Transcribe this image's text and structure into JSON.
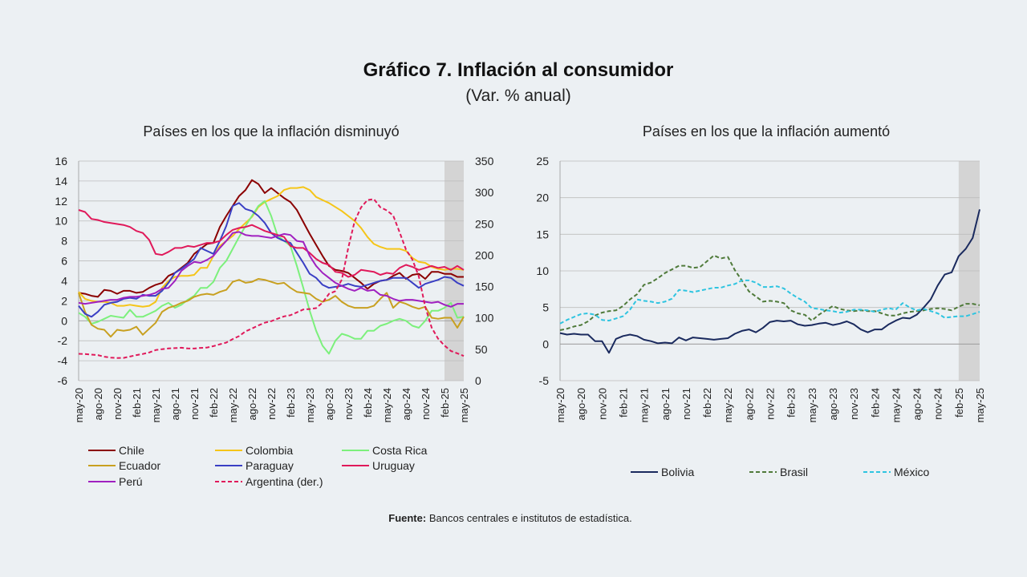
{
  "header": {
    "title": "Gráfico 7. Inflación al consumidor",
    "subtitle": "(Var. % anual)"
  },
  "panels": {
    "left_title": "Países en los que la inflación disminuyó",
    "right_title": "Países en los que la inflación aumentó"
  },
  "source": {
    "label": "Fuente:",
    "text": "Bancos centrales e institutos de estadística."
  },
  "colors": {
    "Chile": "#8b0000",
    "Colombia": "#f5c518",
    "Costa Rica": "#7cf07c",
    "Ecuador": "#c8a020",
    "Paraguay": "#3a3fc4",
    "Uruguay": "#e0195a",
    "Perú": "#a020c0",
    "Argentina (der.)": "#e0195a",
    "Bolivia": "#1a2a5e",
    "Brasil": "#4f7a3a",
    "México": "#2ec4e0",
    "shade": "#d4d4d4",
    "grid": "#bdbdbd"
  },
  "chart_data": [
    {
      "type": "line",
      "title": "Países en los que la inflación disminuyó",
      "x_ticks": [
        "may-20",
        "ago-20",
        "nov-20",
        "feb-21",
        "may-21",
        "ago-21",
        "nov-21",
        "feb-22",
        "may-22",
        "ago-22",
        "nov-22",
        "feb-23",
        "may-23",
        "ago-23",
        "nov-23",
        "feb-24",
        "may-24",
        "ago-24",
        "nov-24",
        "feb-25",
        "may-25"
      ],
      "x_start": "may-20",
      "x_end": "may-25",
      "ylim": [
        -6,
        16
      ],
      "y_ticks": [
        -6,
        -4,
        -2,
        0,
        2,
        4,
        6,
        8,
        10,
        12,
        14,
        16
      ],
      "y2lim": [
        0,
        350
      ],
      "y2_ticks": [
        0,
        50,
        100,
        150,
        200,
        250,
        300,
        350
      ],
      "shaded_from": "feb-25",
      "grid": true,
      "legend_position": "bottom",
      "series": [
        {
          "name": "Chile",
          "axis": "left",
          "style": "solid",
          "values": [
            2.8,
            2.7,
            2.5,
            2.4,
            3.1,
            3.0,
            2.7,
            3.0,
            3.0,
            2.8,
            2.9,
            3.3,
            3.6,
            3.8,
            4.5,
            4.8,
            5.3,
            5.8,
            6.7,
            7.2,
            7.7,
            7.8,
            9.4,
            10.5,
            11.5,
            12.5,
            13.1,
            14.1,
            13.7,
            12.8,
            13.3,
            12.8,
            12.3,
            11.9,
            11.1,
            9.9,
            8.7,
            7.6,
            6.5,
            5.5,
            5.1,
            5.0,
            4.8,
            4.3,
            3.8,
            3.2,
            3.7,
            4.0,
            4.1,
            4.5,
            4.8,
            4.2,
            4.6,
            4.7,
            4.2,
            4.9,
            4.9,
            4.7,
            4.7,
            4.4,
            4.4
          ]
        },
        {
          "name": "Colombia",
          "axis": "left",
          "style": "solid",
          "values": [
            2.9,
            2.2,
            2.0,
            1.9,
            1.9,
            1.8,
            1.5,
            1.5,
            1.6,
            1.5,
            1.4,
            1.5,
            1.9,
            3.3,
            4.0,
            4.4,
            4.5,
            4.5,
            4.6,
            5.3,
            5.3,
            6.5,
            7.5,
            8.0,
            8.5,
            9.2,
            9.8,
            10.4,
            11.4,
            11.9,
            12.2,
            12.5,
            13.1,
            13.3,
            13.3,
            13.4,
            13.1,
            12.4,
            12.1,
            11.8,
            11.4,
            11.0,
            10.5,
            10.0,
            9.3,
            8.4,
            7.7,
            7.4,
            7.2,
            7.2,
            7.2,
            7.0,
            6.3,
            5.9,
            5.8,
            5.4,
            5.2,
            5.1,
            5.2,
            5.2,
            5.1
          ]
        },
        {
          "name": "Costa Rica",
          "axis": "left",
          "style": "solid",
          "values": [
            0.8,
            0.4,
            -0.3,
            -0.1,
            0.2,
            0.5,
            0.4,
            0.3,
            1.1,
            0.4,
            0.4,
            0.7,
            1.0,
            1.5,
            1.8,
            1.3,
            1.6,
            2.1,
            2.5,
            3.3,
            3.3,
            3.9,
            5.3,
            6.0,
            7.2,
            8.4,
            9.5,
            10.5,
            11.5,
            12.0,
            10.5,
            8.5,
            8.0,
            7.5,
            5.5,
            3.3,
            1.0,
            -1.0,
            -2.5,
            -3.3,
            -2.0,
            -1.3,
            -1.5,
            -1.8,
            -1.8,
            -1.0,
            -1.0,
            -0.5,
            -0.3,
            0.0,
            0.2,
            0.0,
            -0.5,
            -0.7,
            0.0,
            1.0,
            1.0,
            1.3,
            1.8,
            0.3,
            0.4
          ]
        },
        {
          "name": "Ecuador",
          "axis": "left",
          "style": "solid",
          "values": [
            2.8,
            0.9,
            -0.4,
            -0.8,
            -0.9,
            -1.6,
            -0.9,
            -1.0,
            -0.9,
            -0.6,
            -1.4,
            -0.8,
            -0.2,
            0.9,
            1.3,
            1.5,
            1.8,
            2.0,
            2.4,
            2.6,
            2.7,
            2.6,
            2.9,
            3.1,
            3.9,
            4.1,
            3.8,
            3.9,
            4.2,
            4.1,
            3.9,
            3.7,
            3.8,
            3.3,
            2.9,
            2.8,
            2.7,
            2.2,
            1.9,
            2.1,
            2.5,
            1.9,
            1.5,
            1.3,
            1.3,
            1.3,
            1.5,
            2.2,
            2.8,
            1.3,
            1.9,
            1.7,
            1.4,
            1.2,
            1.4,
            0.3,
            0.2,
            0.3,
            0.3,
            -0.7,
            0.4
          ]
        },
        {
          "name": "Paraguay",
          "axis": "left",
          "style": "solid",
          "values": [
            1.5,
            0.7,
            0.4,
            0.9,
            1.6,
            1.8,
            1.9,
            2.2,
            2.3,
            2.2,
            2.6,
            2.5,
            2.5,
            3.0,
            3.8,
            4.8,
            5.2,
            5.7,
            6.2,
            7.3,
            7.0,
            6.7,
            8.0,
            9.5,
            11.5,
            11.8,
            11.2,
            11.0,
            10.5,
            9.8,
            8.8,
            8.3,
            8.0,
            7.8,
            6.8,
            5.8,
            4.7,
            4.3,
            3.6,
            3.3,
            3.4,
            3.5,
            3.7,
            3.5,
            3.4,
            3.6,
            3.8,
            4.0,
            4.1,
            4.3,
            4.3,
            4.3,
            3.8,
            3.3,
            3.7,
            3.9,
            4.1,
            4.4,
            4.3,
            3.8,
            3.5
          ]
        },
        {
          "name": "Uruguay",
          "axis": "left",
          "style": "solid",
          "values": [
            11.1,
            10.9,
            10.2,
            10.1,
            9.9,
            9.8,
            9.7,
            9.6,
            9.4,
            9.0,
            8.8,
            8.1,
            6.7,
            6.6,
            6.9,
            7.3,
            7.3,
            7.5,
            7.4,
            7.6,
            7.8,
            7.8,
            8.0,
            8.6,
            9.1,
            9.3,
            9.4,
            9.6,
            9.3,
            9.0,
            8.8,
            8.6,
            8.4,
            7.5,
            7.3,
            7.3,
            6.8,
            6.2,
            5.8,
            5.6,
            4.9,
            4.8,
            4.4,
            4.6,
            5.1,
            5.0,
            4.9,
            4.6,
            4.8,
            4.7,
            5.3,
            5.6,
            5.4,
            5.1,
            5.3,
            5.5,
            5.3,
            5.4,
            5.1,
            5.5,
            5.1
          ]
        },
        {
          "name": "Perú",
          "axis": "left",
          "style": "solid",
          "values": [
            1.8,
            1.7,
            1.8,
            1.9,
            2.0,
            2.1,
            2.1,
            2.3,
            2.4,
            2.4,
            2.5,
            2.6,
            2.8,
            3.2,
            3.3,
            4.0,
            5.0,
            5.5,
            5.9,
            5.8,
            6.1,
            6.5,
            7.3,
            8.0,
            8.8,
            8.9,
            8.6,
            8.5,
            8.5,
            8.4,
            8.3,
            8.5,
            8.7,
            8.6,
            8.0,
            7.9,
            6.5,
            5.5,
            4.8,
            4.3,
            3.8,
            3.5,
            3.2,
            3.0,
            3.3,
            3.0,
            3.1,
            2.6,
            2.5,
            2.2,
            2.0,
            2.1,
            2.1,
            2.0,
            1.9,
            1.8,
            1.9,
            1.6,
            1.4,
            1.7,
            1.7
          ]
        },
        {
          "name": "Argentina (der.)",
          "axis": "right",
          "style": "dashed",
          "values": [
            42.8,
            42.4,
            41.5,
            40.7,
            38.2,
            36.6,
            36.1,
            36.3,
            38.5,
            40.7,
            42.6,
            45.0,
            48.8,
            50.2,
            51.4,
            51.8,
            52.5,
            51.4,
            51.2,
            52.3,
            52.8,
            55.1,
            58.0,
            60.7,
            66.3,
            71.0,
            78.5,
            83.0,
            88.0,
            92.4,
            94.8,
            98.8,
            102.5,
            104.3,
            108.8,
            113.4,
            114.2,
            115.6,
            124.4,
            138.3,
            142.7,
            160.9,
            211.4,
            254.2,
            276.2,
            287.9,
            289.4,
            276.4,
            271.5,
            263.4,
            236.7,
            209.0,
            193.0,
            166.0,
            117.8,
            84.5,
            66.9,
            55.9,
            47.3,
            43.5,
            39.4
          ]
        }
      ]
    },
    {
      "type": "line",
      "title": "Países en los que la inflación aumentó",
      "x_ticks": [
        "may-20",
        "ago-20",
        "nov-20",
        "feb-21",
        "may-21",
        "ago-21",
        "nov-21",
        "feb-22",
        "may-22",
        "ago-22",
        "nov-22",
        "feb-23",
        "may-23",
        "ago-23",
        "nov-23",
        "feb-24",
        "may-24",
        "ago-24",
        "nov-24",
        "feb-25",
        "may-25"
      ],
      "x_start": "may-20",
      "x_end": "may-25",
      "ylim": [
        -5,
        25
      ],
      "y_ticks": [
        -5,
        0,
        5,
        10,
        15,
        20,
        25
      ],
      "shaded_from": "feb-25",
      "grid": true,
      "legend_position": "bottom",
      "series": [
        {
          "name": "Bolivia",
          "style": "solid",
          "values": [
            1.5,
            1.3,
            1.4,
            1.3,
            1.3,
            0.4,
            0.4,
            -1.2,
            0.7,
            1.1,
            1.3,
            1.1,
            0.6,
            0.4,
            0.1,
            0.2,
            0.1,
            0.9,
            0.5,
            0.9,
            0.8,
            0.7,
            0.6,
            0.7,
            0.8,
            1.4,
            1.8,
            2.0,
            1.6,
            2.2,
            3.0,
            3.2,
            3.1,
            3.2,
            2.7,
            2.5,
            2.6,
            2.8,
            2.9,
            2.6,
            2.8,
            3.1,
            2.7,
            2.0,
            1.6,
            2.0,
            2.0,
            2.7,
            3.2,
            3.6,
            3.5,
            4.0,
            5.0,
            6.1,
            8.0,
            9.5,
            9.8,
            12.0,
            13.0,
            14.5,
            18.4
          ]
        },
        {
          "name": "Brasil",
          "style": "dashed",
          "values": [
            1.9,
            2.1,
            2.4,
            2.6,
            3.1,
            3.9,
            4.3,
            4.5,
            4.6,
            5.2,
            6.1,
            6.8,
            8.1,
            8.4,
            9.0,
            9.7,
            10.2,
            10.7,
            10.7,
            10.4,
            10.5,
            11.3,
            12.1,
            11.7,
            11.9,
            10.1,
            8.7,
            7.2,
            6.5,
            5.8,
            5.9,
            5.8,
            5.6,
            4.6,
            4.2,
            4.0,
            3.2,
            4.0,
            4.6,
            5.2,
            4.8,
            4.6,
            4.5,
            4.6,
            4.5,
            4.5,
            4.2,
            3.9,
            3.9,
            4.2,
            4.4,
            4.5,
            4.6,
            4.8,
            4.9,
            4.8,
            4.6,
            5.1,
            5.5,
            5.5,
            5.3
          ]
        },
        {
          "name": "México",
          "style": "dashed",
          "values": [
            2.8,
            3.3,
            3.7,
            4.1,
            4.2,
            4.0,
            3.3,
            3.2,
            3.5,
            3.8,
            4.7,
            6.1,
            5.9,
            5.8,
            5.6,
            5.8,
            6.2,
            7.4,
            7.3,
            7.1,
            7.3,
            7.5,
            7.7,
            7.7,
            8.0,
            8.2,
            8.7,
            8.7,
            8.4,
            7.8,
            7.8,
            7.9,
            7.6,
            6.9,
            6.3,
            5.8,
            4.9,
            4.8,
            4.6,
            4.5,
            4.3,
            4.4,
            4.7,
            4.7,
            4.6,
            4.4,
            4.7,
            4.9,
            4.7,
            5.6,
            5.0,
            4.6,
            4.8,
            4.5,
            4.2,
            3.6,
            3.7,
            3.8,
            3.8,
            4.1,
            4.4
          ]
        }
      ]
    }
  ]
}
